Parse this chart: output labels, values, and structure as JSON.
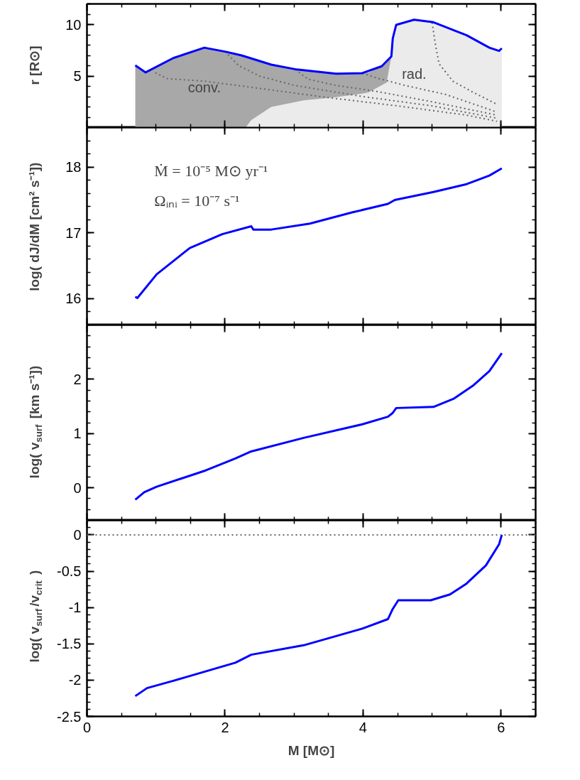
{
  "chart_data": [
    {
      "type": "line",
      "ylabel": "r [R⊙]",
      "xlim": [
        0,
        6.5
      ],
      "xticks": [
        0,
        2,
        4,
        6
      ],
      "ylim": [
        0,
        12
      ],
      "yticks": [
        5,
        10
      ],
      "tick_labels": "y",
      "series": [
        {
          "type": "area",
          "name": "conv.",
          "color": "#a8a8a8",
          "x": [
            0.7,
            0.85,
            1.25,
            1.7,
            2.0,
            2.24,
            2.31,
            2.38,
            2.67,
            3.04,
            3.14,
            3.61,
            3.99,
            4.08,
            4.27,
            4.34,
            4.41
          ],
          "values": [
            6.04,
            5.35,
            6.74,
            7.75,
            7.37,
            7.0,
            6.85,
            6.7,
            6.1,
            5.63,
            5.55,
            5.22,
            5.28,
            5.35,
            5.95,
            6.3,
            6.9
          ]
        },
        {
          "type": "area",
          "name": "rad.",
          "color": "#ebebeb",
          "x": [
            2.31,
            2.38,
            2.67,
            3.04,
            3.14,
            3.61,
            3.99,
            4.08,
            4.27,
            4.34,
            4.41,
            4.43,
            4.48,
            4.74,
            5.02,
            5.5,
            5.83,
            5.97,
            6.01
          ],
          "values": [
            0.1,
            0.73,
            2.0,
            2.5,
            2.63,
            2.94,
            3.3,
            3.42,
            4.1,
            4.37,
            6.9,
            8.64,
            9.97,
            10.47,
            10.22,
            8.96,
            7.75,
            7.44,
            7.4
          ]
        },
        {
          "color": "#666666",
          "line_style": "dotted",
          "x": [
            0.99,
            1.16,
            1.7,
            2.5,
            3.5,
            4.5,
            5.5,
            5.94
          ],
          "values": [
            5.32,
            4.75,
            4.5,
            3.8,
            2.9,
            2.1,
            1.2,
            0.6
          ]
        },
        {
          "color": "#666666",
          "line_style": "dotted",
          "x": [
            2.0,
            2.2,
            2.5,
            3.0,
            4.0,
            5.0,
            5.94
          ],
          "values": [
            7.37,
            6.0,
            5.0,
            4.1,
            3.0,
            2.1,
            0.9
          ]
        },
        {
          "color": "#666666",
          "line_style": "dotted",
          "x": [
            3.02,
            3.2,
            3.6,
            4.2,
            5.0,
            5.94
          ],
          "values": [
            5.63,
            4.7,
            4.1,
            3.5,
            2.5,
            1.2
          ]
        },
        {
          "color": "#666666",
          "line_style": "dotted",
          "x": [
            3.99,
            4.2,
            4.6,
            5.2,
            5.94
          ],
          "values": [
            5.28,
            4.8,
            4.1,
            3.2,
            1.5
          ]
        },
        {
          "color": "#666666",
          "line_style": "dotted",
          "x": [
            5.0,
            5.05,
            5.1,
            5.3,
            5.6,
            5.94
          ],
          "values": [
            10.2,
            8.0,
            6.2,
            4.5,
            3.4,
            2.25
          ]
        },
        {
          "color": "#0000ff",
          "x": [
            0.7,
            0.85,
            1.25,
            1.7,
            2.0,
            2.24,
            2.67,
            3.04,
            3.61,
            3.99,
            4.27,
            4.41,
            4.43,
            4.48,
            4.74,
            5.02,
            5.5,
            5.83,
            5.97,
            6.01
          ],
          "values": [
            6.04,
            5.35,
            6.74,
            7.75,
            7.37,
            7.0,
            6.1,
            5.63,
            5.22,
            5.28,
            5.95,
            6.9,
            8.64,
            9.97,
            10.47,
            10.22,
            8.96,
            7.75,
            7.44,
            7.69
          ]
        }
      ]
    },
    {
      "type": "line",
      "ylabel": "log( dJ/dM [cm² s⁻¹])",
      "xlim": [
        0,
        6.5
      ],
      "xticks": [
        0,
        2,
        4,
        6
      ],
      "ylim": [
        15.6,
        18.6
      ],
      "yticks": [
        16,
        17,
        18
      ],
      "tick_labels": "y",
      "annotations": [
        "Ṁ  = 10⁻⁵ M⊙ yr⁻¹",
        "Ωᵢₙᵢ = 10⁻⁷ s⁻¹"
      ],
      "series": [
        {
          "color": "#0000ff",
          "x": [
            0.7,
            0.73,
            1.01,
            1.49,
            1.96,
            2.38,
            2.41,
            2.67,
            3.23,
            3.84,
            4.36,
            4.46,
            5.02,
            5.5,
            5.83,
            6.01
          ],
          "values": [
            16.03,
            16.01,
            16.37,
            16.77,
            16.98,
            17.1,
            17.05,
            17.05,
            17.14,
            17.31,
            17.44,
            17.5,
            17.62,
            17.74,
            17.87,
            17.98
          ]
        }
      ]
    },
    {
      "type": "line",
      "ylabel": "log( v$_{surf}$ [km s⁻¹])",
      "xlim": [
        0,
        6.5
      ],
      "xticks": [
        0,
        2,
        4,
        6
      ],
      "ylim": [
        -0.6,
        3
      ],
      "yticks": [
        0,
        1,
        2
      ],
      "tick_labels": "y",
      "series": [
        {
          "color": "#0000ff",
          "x": [
            0.7,
            0.83,
            1.01,
            1.72,
            2.15,
            2.38,
            3.14,
            3.99,
            4.36,
            4.43,
            4.48,
            5.02,
            5.31,
            5.59,
            5.83,
            6.01
          ],
          "values": [
            -0.22,
            -0.08,
            0.02,
            0.32,
            0.54,
            0.67,
            0.92,
            1.17,
            1.31,
            1.38,
            1.47,
            1.49,
            1.64,
            1.88,
            2.15,
            2.48
          ]
        }
      ]
    },
    {
      "type": "line",
      "ylabel": "log( v$_{surf}$/v$_{crit}$ )",
      "xlabel": "M [M⊙]",
      "xlim": [
        0,
        6.5
      ],
      "xticks": [
        0,
        2,
        4,
        6
      ],
      "ylim": [
        -2.5,
        0.2
      ],
      "yticks": [
        -2.5,
        -2,
        -1.5,
        -1,
        -0.5,
        0
      ],
      "ref_lines": [
        {
          "axis": "y",
          "value": 0,
          "color": "#666666",
          "line_style": "dotted"
        }
      ],
      "series": [
        {
          "color": "#0000ff",
          "x": [
            0.7,
            0.87,
            1.25,
            2.15,
            2.38,
            3.14,
            3.99,
            4.36,
            4.43,
            4.51,
            4.98,
            5.26,
            5.5,
            5.78,
            5.97,
            6.01
          ],
          "values": [
            -2.22,
            -2.11,
            -2.01,
            -1.76,
            -1.65,
            -1.52,
            -1.29,
            -1.16,
            -1.02,
            -0.9,
            -0.9,
            -0.82,
            -0.67,
            -0.42,
            -0.13,
            0.0
          ]
        }
      ]
    }
  ]
}
